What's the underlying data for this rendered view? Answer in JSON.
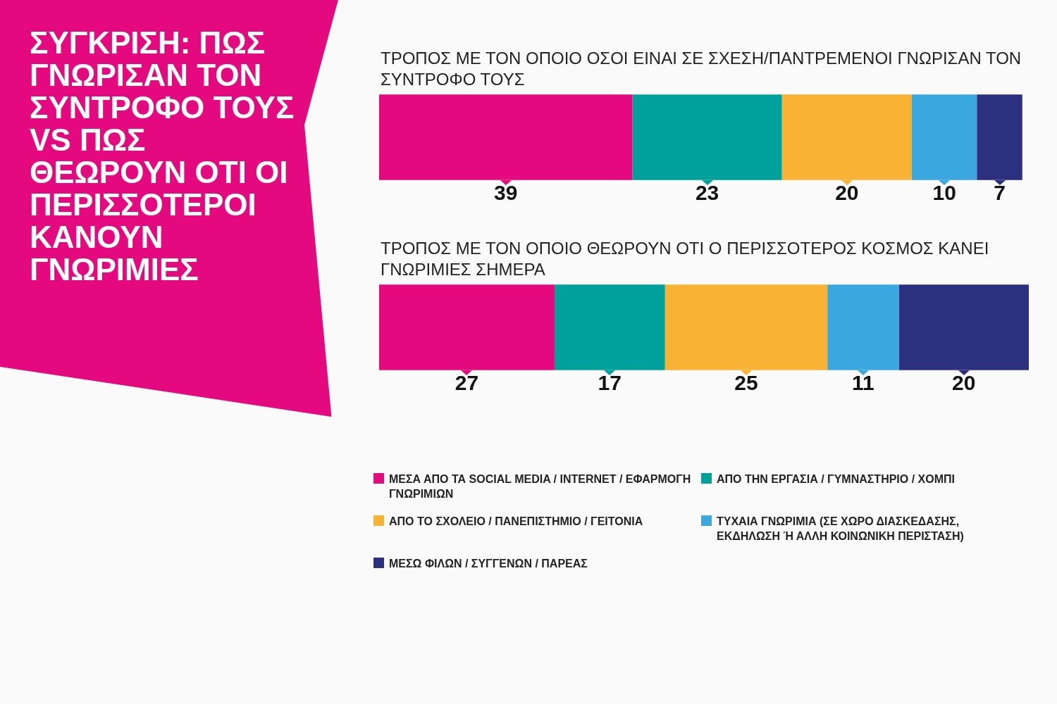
{
  "chart_data": {
    "type": "bar",
    "title": "ΣΥΓΚΡΙΣΗ: ΠΩΣ ΓΝΩΡΙΣΑΝ ΤΟΝ ΣΥΝΤΡΟΦΟ ΤΟΥΣ VS ΠΩΣ ΘΕΩΡΟΥΝ ΟΤΙ ΟΙ ΠΕΡΙΣΣΟΤΕΡΟΙ ΚΑΝΟΥΝ ΓΝΩΡΙΜΙΕΣ",
    "orientation": "horizontal",
    "stacked": true,
    "data_labels": true,
    "legend": "bottom",
    "categories": [
      "ΤΡΟΠΟΣ ΜΕ ΤΟΝ ΟΠΟΙΟ ΟΣΟΙ ΕΙΝΑΙ ΣΕ ΣΧΕΣΗ/ΠΑΝΤΡΕΜΕΝΟΙ ΓΝΩΡΙΣΑΝ ΤΟΝ ΣΥΝΤΡΟΦΟ ΤΟΥΣ",
      "ΤΡΟΠΟΣ ΜΕ ΤΟΝ ΟΠΟΙΟ ΘΕΩΡΟΥΝ ΟΤΙ Ο ΠΕΡΙΣΣΟΤΕΡΟΣ ΚΟΣΜΟΣ ΚΑΝΕΙ ΓΝΩΡΙΜΙΕΣ ΣΗΜΕΡΑ"
    ],
    "series": [
      {
        "name": "ΜΕΣΑ ΑΠΟ ΤΑ SOCIAL MEDIA / INTERNET / ΕΦΑΡΜΟΓΗ ΓΝΩΡΙΜΙΩΝ",
        "color": "#e5097f",
        "values": [
          39,
          27
        ]
      },
      {
        "name": "ΑΠΟ ΤΗΝ ΕΡΓΑΣΙΑ / ΓΥΜΝΑΣΤΗΡΙΟ / ΧΟΜΠΙ",
        "color": "#00a19a",
        "values": [
          23,
          17
        ]
      },
      {
        "name": "ΑΠΟ ΤΟ ΣΧΟΛΕΙΟ / ΠΑΝΕΠΙΣΤΗΜΙΟ / ΓΕΙΤΟΝΙΑ",
        "color": "#f8b334",
        "values": [
          20,
          25
        ]
      },
      {
        "name": "ΤΥΧΑΙΑ ΓΝΩΡΙΜΙΑ (ΣΕ ΧΩΡΟ ΔΙΑΣΚΕΔΑΣΗΣ, ΕΚΔΗΛΩΣΗ Ή ΑΛΛΗ ΚΟΙΝΩΝΙΚΗ ΠΕΡΙΣΤΑΣΗ)",
        "color": "#3aa8df",
        "values": [
          10,
          11
        ]
      },
      {
        "name": "ΜΕΣΩ ΦΙΛΩΝ / ΣΥΓΓΕΝΩΝ / ΠΑΡΕΑΣ",
        "color": "#2d2f7f",
        "values": [
          7,
          20
        ]
      }
    ]
  }
}
